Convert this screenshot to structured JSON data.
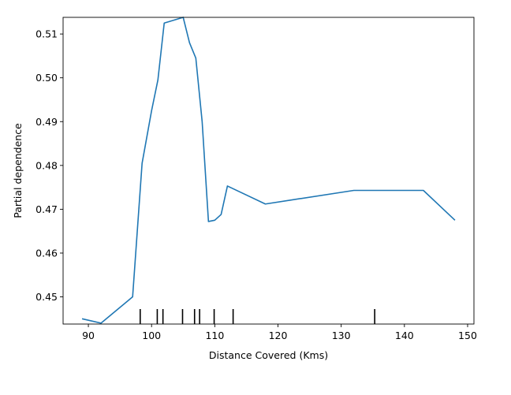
{
  "chart_data": {
    "type": "line",
    "title": "",
    "xlabel": "Distance Covered (Kms)",
    "ylabel": "Partial dependence",
    "xlim": [
      86.0,
      151.0
    ],
    "ylim": [
      0.4438,
      0.5138
    ],
    "xticks": [
      90,
      100,
      110,
      120,
      130,
      140,
      150
    ],
    "yticks": [
      0.45,
      0.46,
      0.47,
      0.48,
      0.49,
      0.5,
      0.51
    ],
    "ytick_labels": [
      "0.45",
      "0.46",
      "0.47",
      "0.48",
      "0.49",
      "0.50",
      "0.51"
    ],
    "grid": false,
    "legend": "none",
    "colors": {
      "line": "#1f77b4",
      "rug": "#000000",
      "axes": "#000000"
    },
    "series": [
      {
        "x": [
          89,
          92,
          97,
          98.5,
          100,
          101,
          102,
          105,
          106,
          107,
          108,
          109,
          110,
          111,
          112,
          118,
          132,
          143,
          148
        ],
        "y": [
          0.445,
          0.444,
          0.45,
          0.4805,
          0.4925,
          0.4995,
          0.5125,
          0.5138,
          0.508,
          0.5045,
          0.49,
          0.4672,
          0.4675,
          0.4688,
          0.4753,
          0.4712,
          0.4743,
          0.4743,
          0.4675
        ]
      }
    ],
    "rug_x": [
      98.2,
      100.9,
      101.8,
      104.9,
      106.8,
      107.6,
      109.9,
      112.9,
      135.3
    ]
  }
}
